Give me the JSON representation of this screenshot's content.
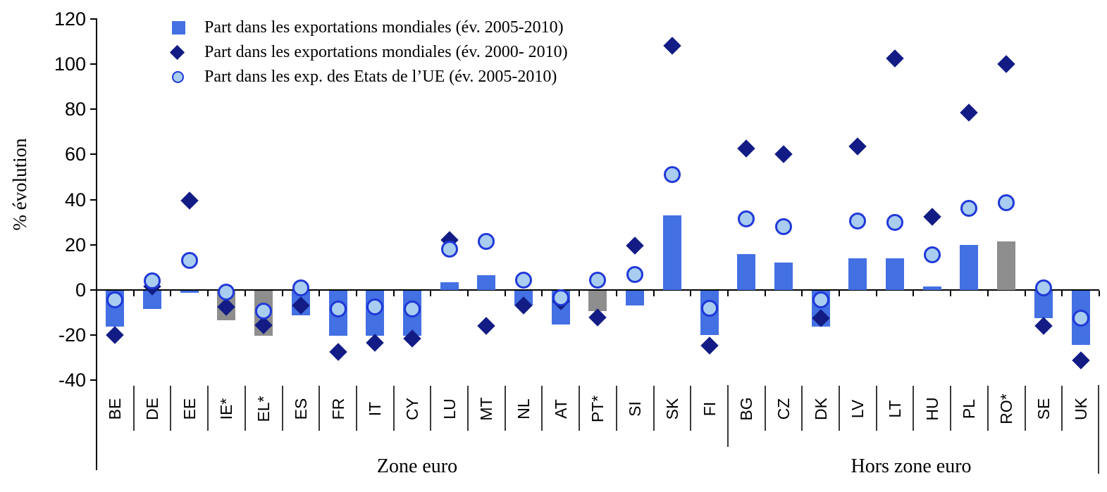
{
  "colors": {
    "bar_blue": "#4370e3",
    "bar_gray": "#8e8e8e",
    "diamond_navy": "#131c85",
    "circle_fill": "#a8cdf0",
    "circle_border": "#2038d8",
    "axis_black": "#000000"
  },
  "legend": {
    "items": [
      {
        "marker": "square-icon",
        "label": "Part dans les exportations mondiales (év. 2005-2010)"
      },
      {
        "marker": "diamond-icon",
        "label": "Part dans les exportations mondiales (év. 2000- 2010)"
      },
      {
        "marker": "circle-icon",
        "label": "Part dans les exp. des Etats de l’UE (év. 2005-2010)"
      }
    ]
  },
  "y_axis": {
    "label": "% évolution",
    "ticks": [
      120,
      100,
      80,
      60,
      40,
      20,
      0,
      -20,
      -40
    ],
    "min": -40,
    "max": 120
  },
  "zones": [
    {
      "label": "Zone euro",
      "from_index": 0,
      "to_index": 16
    },
    {
      "label": "Hors zone euro",
      "from_index": 17,
      "to_index": 26
    }
  ],
  "chart_data": {
    "type": "combo",
    "note": "bars = blue (gray for starred countries); diamonds and circles = scatter markers",
    "categories": [
      "BE",
      "DE",
      "EE",
      "IE*",
      "EL*",
      "ES",
      "FR",
      "IT",
      "CY",
      "LU",
      "MT",
      "NL",
      "AT",
      "PT*",
      "SI",
      "SK",
      "FI",
      "BG",
      "CZ",
      "DK",
      "LV",
      "LT",
      "HU",
      "PL",
      "RO*",
      "SE",
      "UK"
    ],
    "gray_bar_categories": [
      "IE*",
      "EL*",
      "PT*",
      "RO*"
    ],
    "series": [
      {
        "name": "Part dans les exportations mondiales (év. 2005-2010)",
        "style": "bar",
        "values": [
          -16,
          -8,
          -1,
          -13,
          -20,
          -11,
          -20,
          -20,
          -20,
          3.5,
          6.5,
          -6.5,
          -15,
          -9,
          -6.5,
          33,
          -19.5,
          16,
          12,
          -16,
          14,
          14,
          1.5,
          20,
          21.5,
          -12,
          -24
        ]
      },
      {
        "name": "Part dans les exportations mondiales (év. 2000- 2010)",
        "style": "scatter-diamond",
        "values": [
          -20,
          1.5,
          39.5,
          -7.5,
          -15.5,
          -7,
          -27.5,
          -23.5,
          -21.5,
          22,
          -16,
          -7,
          -5,
          -12,
          19.5,
          108,
          -24.5,
          62.5,
          60,
          -12.5,
          63.5,
          102.5,
          32.5,
          78.5,
          100,
          -16,
          -31
        ]
      },
      {
        "name": "Part dans les exp. des Etats de l’UE (év. 2005-2010)",
        "style": "scatter-circle",
        "values": [
          -4.5,
          4,
          13,
          -1,
          -9.5,
          1,
          -8.5,
          -7.5,
          -8.5,
          18,
          21.5,
          4.5,
          -3.5,
          4.5,
          7,
          51,
          -8,
          31.5,
          28,
          -4.5,
          30.5,
          30,
          15.5,
          36,
          38.5,
          1,
          -12.5
        ]
      }
    ],
    "xlabel": "",
    "ylabel": "% évolution",
    "ylim": [
      -40,
      120
    ],
    "grid": false,
    "legend_position": "top-left-inside"
  }
}
